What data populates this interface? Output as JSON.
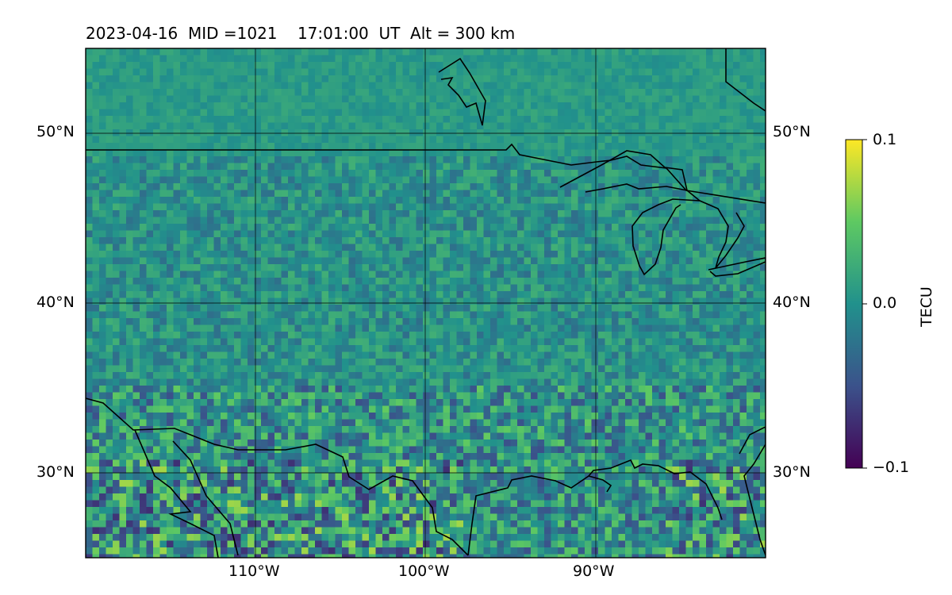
{
  "header": {
    "title": "2023-04-16  MID =1021    17:01:00  UT  Alt = 300 km"
  },
  "map": {
    "lat_labels": [
      "50°N",
      "40°N",
      "30°N"
    ],
    "lon_labels": [
      "110°W",
      "100°W",
      "90°W"
    ],
    "lat_range": [
      25,
      55
    ],
    "lon_range": [
      -120,
      -80
    ],
    "gridlines": true,
    "colormap": "viridis",
    "field_description_values": {
      "min": -0.1,
      "max": 0.1
    }
  },
  "colorbar": {
    "label": "TECU",
    "ticks": [
      "0.1",
      "0.0",
      "−0.1"
    ],
    "colors": [
      "#fde725",
      "#5ec962",
      "#21918c",
      "#3b528b",
      "#440154"
    ]
  }
}
